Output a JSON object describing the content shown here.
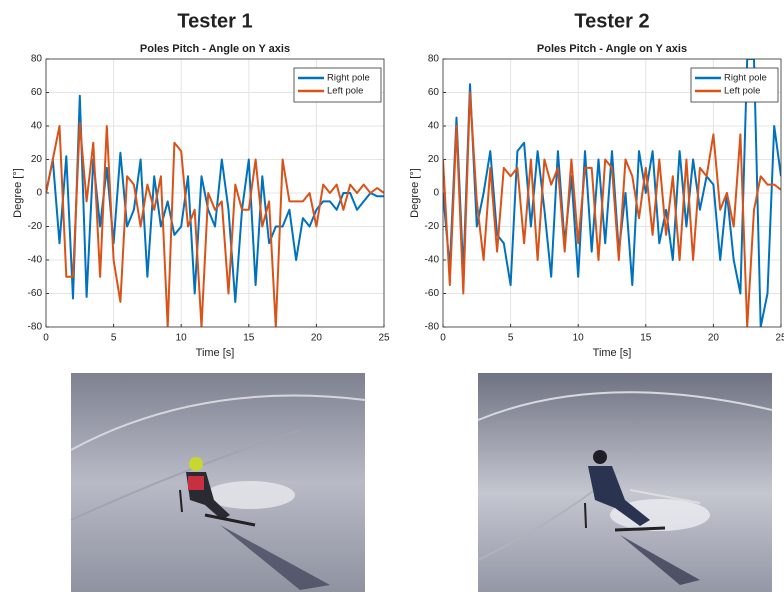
{
  "chart_data": [
    {
      "type": "line",
      "title": "Tester 1",
      "subtitle": "Poles Pitch - Angle on Y axis",
      "x_label": "Time [s]",
      "y_label": "Degree [°]",
      "x": [
        0,
        0.5,
        1,
        1.5,
        2,
        2.5,
        3,
        3.5,
        4,
        4.5,
        5,
        5.5,
        6,
        6.5,
        7,
        7.5,
        8,
        8.5,
        9,
        9.5,
        10,
        10.5,
        11,
        11.5,
        12,
        12.5,
        13,
        13.5,
        14,
        14.5,
        15,
        15.5,
        16,
        16.5,
        17,
        17.5,
        18,
        18.5,
        19,
        19.5,
        20,
        20.5,
        21,
        21.5,
        22,
        22.5,
        23,
        23.5,
        24,
        24.5,
        25
      ],
      "series": [
        {
          "name": "Right pole",
          "color": "#0072BD",
          "values": [
            0,
            20,
            -30,
            22,
            -63,
            58,
            -62,
            20,
            -20,
            15,
            -30,
            24,
            -20,
            -10,
            20,
            -50,
            10,
            -20,
            -5,
            -25,
            -20,
            10,
            -60,
            10,
            -10,
            -20,
            20,
            -10,
            -65,
            -10,
            20,
            -55,
            10,
            -30,
            -20,
            -20,
            -10,
            -40,
            -15,
            -20,
            -10,
            -5,
            -5,
            -10,
            0,
            0,
            -10,
            -5,
            0,
            -2,
            -2
          ]
        },
        {
          "name": "Left pole",
          "color": "#D95319",
          "values": [
            0,
            20,
            40,
            -50,
            -50,
            42,
            -5,
            30,
            -50,
            40,
            -40,
            -65,
            10,
            5,
            -20,
            5,
            -10,
            10,
            -80,
            30,
            25,
            -20,
            -10,
            -80,
            0,
            -10,
            -5,
            -60,
            5,
            -10,
            -10,
            20,
            -20,
            -5,
            -80,
            20,
            -5,
            -5,
            -5,
            0,
            -20,
            5,
            0,
            5,
            -10,
            5,
            0,
            5,
            0,
            3,
            0
          ]
        }
      ],
      "xlim": [
        0,
        25
      ],
      "xticks": [
        0,
        5,
        10,
        15,
        20,
        25
      ],
      "ylim": [
        -80,
        80
      ],
      "yticks": [
        -80,
        -60,
        -40,
        -20,
        0,
        20,
        40,
        60,
        80
      ],
      "grid": true,
      "legend": "upper right"
    },
    {
      "type": "line",
      "title": "Tester 2",
      "subtitle": "Poles Pitch - Angle on Y axis",
      "x_label": "Time [s]",
      "y_label": "Degree [°]",
      "x": [
        0,
        0.5,
        1,
        1.5,
        2,
        2.5,
        3,
        3.5,
        4,
        4.5,
        5,
        5.5,
        6,
        6.5,
        7,
        7.5,
        8,
        8.5,
        9,
        9.5,
        10,
        10.5,
        11,
        11.5,
        12,
        12.5,
        13,
        13.5,
        14,
        14.5,
        15,
        15.5,
        16,
        16.5,
        17,
        17.5,
        18,
        18.5,
        19,
        19.5,
        20,
        20.5,
        21,
        21.5,
        22,
        22.5,
        23,
        23.5,
        24,
        24.5,
        25
      ],
      "series": [
        {
          "name": "Right pole",
          "color": "#0072BD",
          "values": [
            0,
            -45,
            45,
            -48,
            65,
            -20,
            0,
            25,
            -25,
            -30,
            -55,
            25,
            30,
            -20,
            25,
            -10,
            -50,
            25,
            -30,
            10,
            -50,
            25,
            -35,
            20,
            -30,
            25,
            -35,
            0,
            -55,
            25,
            0,
            25,
            -30,
            -10,
            -40,
            25,
            -20,
            20,
            -10,
            10,
            5,
            -40,
            0,
            -40,
            -60,
            80,
            80,
            -80,
            -60,
            40,
            10
          ]
        },
        {
          "name": "Left pole",
          "color": "#D95319",
          "values": [
            20,
            -55,
            40,
            -60,
            60,
            -5,
            -40,
            15,
            -35,
            15,
            10,
            15,
            -30,
            20,
            -40,
            20,
            5,
            15,
            -35,
            20,
            -30,
            15,
            15,
            -40,
            20,
            15,
            -40,
            20,
            10,
            -15,
            15,
            -25,
            20,
            -25,
            10,
            -40,
            20,
            -40,
            15,
            10,
            35,
            -10,
            0,
            -20,
            35,
            -80,
            -10,
            10,
            5,
            5,
            2
          ]
        }
      ],
      "xlim": [
        0,
        25
      ],
      "xticks": [
        0,
        5,
        10,
        15,
        20,
        25
      ],
      "ylim": [
        -80,
        80
      ],
      "yticks": [
        -80,
        -60,
        -40,
        -20,
        0,
        20,
        40,
        60,
        80
      ],
      "grid": true,
      "legend": "upper right"
    }
  ]
}
